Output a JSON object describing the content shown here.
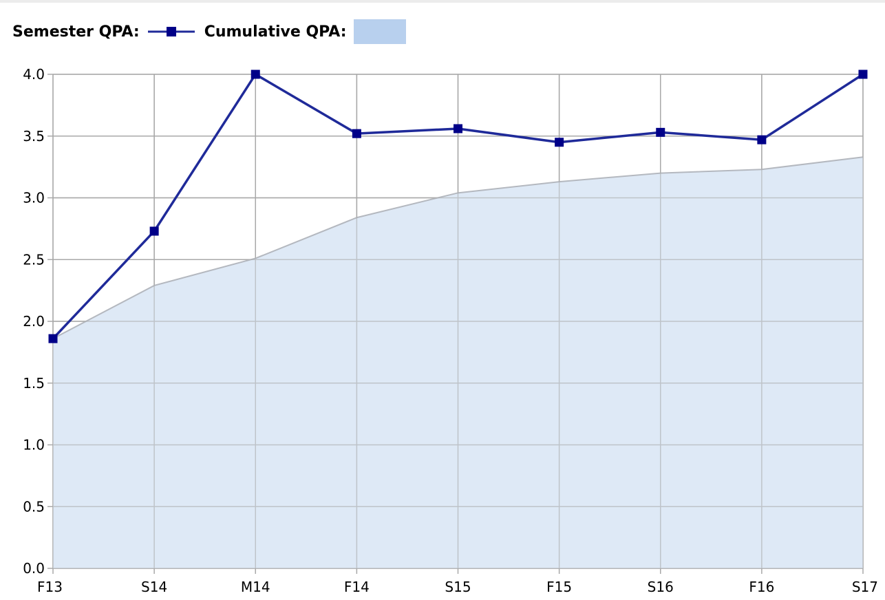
{
  "legend": {
    "semester_label": "Semester QPA:",
    "cumulative_label": "Cumulative QPA:"
  },
  "colors": {
    "semester_line": "#1f2a99",
    "semester_marker": "#000088",
    "cumulative_fill": "#dce8f6",
    "cumulative_swatch": "#b8d0ee",
    "cumulative_stroke": "#b4b8bf",
    "grid": "#a8a8a8"
  },
  "chart_data": {
    "type": "line",
    "categories": [
      "F13",
      "S14",
      "M14",
      "F14",
      "S15",
      "F15",
      "S16",
      "F16",
      "S17"
    ],
    "series": [
      {
        "name": "Semester QPA",
        "kind": "line",
        "values": [
          1.86,
          2.73,
          4.0,
          3.52,
          3.56,
          3.45,
          3.53,
          3.47,
          4.0
        ]
      },
      {
        "name": "Cumulative QPA",
        "kind": "area",
        "values": [
          1.86,
          2.29,
          2.51,
          2.84,
          3.04,
          3.13,
          3.2,
          3.23,
          3.33
        ]
      }
    ],
    "ylim": [
      0,
      4
    ],
    "yticks": [
      "0.0",
      "0.5",
      "1.0",
      "1.5",
      "2.0",
      "2.5",
      "3.0",
      "3.5",
      "4.0"
    ],
    "grid": true,
    "legend_position": "top-left",
    "xlabel": "",
    "ylabel": ""
  }
}
